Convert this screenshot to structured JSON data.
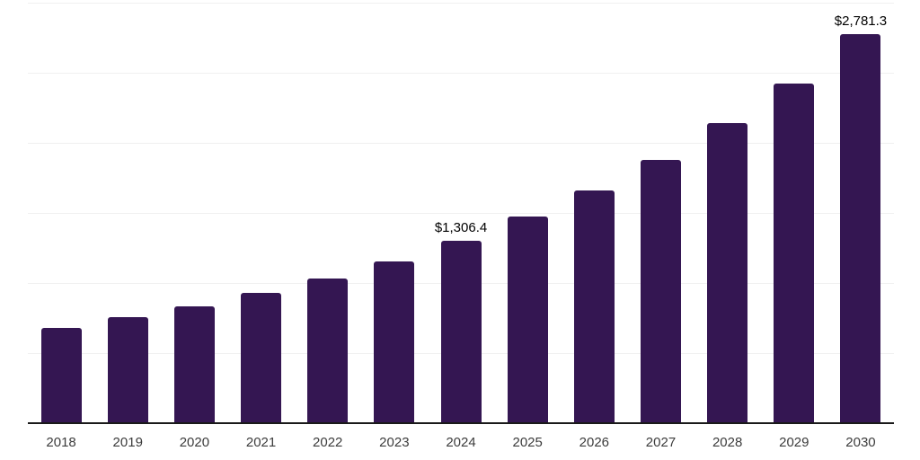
{
  "chart_data": {
    "type": "bar",
    "title": "",
    "xlabel": "",
    "ylabel": "",
    "categories": [
      "2018",
      "2019",
      "2020",
      "2021",
      "2022",
      "2023",
      "2024",
      "2025",
      "2026",
      "2027",
      "2028",
      "2029",
      "2030"
    ],
    "values": [
      685,
      760,
      838,
      935,
      1040,
      1162,
      1306.4,
      1478,
      1667,
      1887,
      2145,
      2430,
      2781.3
    ],
    "value_labels": [
      "",
      "",
      "",
      "",
      "",
      "",
      "$1,306.4",
      "",
      "",
      "",
      "",
      "",
      "$2,781.3"
    ],
    "ylim": [
      0,
      3000
    ],
    "gridline_interval": 500,
    "grid": "horizontal",
    "legend": "none",
    "colors": {
      "bar": "#341652",
      "axis_line": "#1a1a1a",
      "gridline": "#f0f0f0",
      "tick_label": "#3c3c3c",
      "value_label": "#000000",
      "background": "#ffffff"
    }
  }
}
